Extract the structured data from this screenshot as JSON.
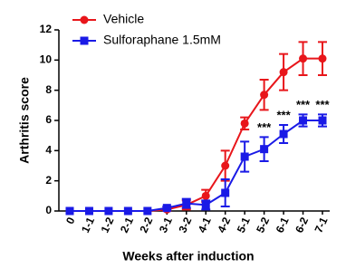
{
  "chart_data": {
    "type": "line",
    "y_label": "Arthritis score",
    "x_label": "Weeks after induction",
    "categories": [
      "0",
      "1-1",
      "1-2",
      "2-1",
      "2-2",
      "3-1",
      "3-2",
      "4-1",
      "4-2",
      "5-1",
      "5-2",
      "6-1",
      "6-2",
      "7-1"
    ],
    "series": [
      {
        "name": "Vehicle",
        "color": "#e8161b",
        "marker": "circle",
        "values": [
          0,
          0,
          0,
          0,
          0,
          0.1,
          0.4,
          1.0,
          3.0,
          5.8,
          7.7,
          9.2,
          10.1,
          10.1
        ],
        "errors": [
          0,
          0,
          0,
          0,
          0,
          0.1,
          0.3,
          0.4,
          1.0,
          0.4,
          1.0,
          1.2,
          1.1,
          1.1
        ]
      },
      {
        "name": "Sulforaphane 1.5mM",
        "color": "#1a1ae6",
        "marker": "square",
        "values": [
          0,
          0,
          0,
          0,
          0,
          0.2,
          0.5,
          0.4,
          1.2,
          3.6,
          4.1,
          5.1,
          6.0,
          6.0
        ],
        "errors": [
          0,
          0,
          0,
          0,
          0,
          0.1,
          0.3,
          0.3,
          0.9,
          1.0,
          0.8,
          0.6,
          0.4,
          0.4
        ]
      }
    ],
    "significance": [
      null,
      null,
      null,
      null,
      null,
      null,
      null,
      null,
      null,
      null,
      "***",
      "***",
      "***",
      "***"
    ],
    "ylim": [
      0,
      12
    ],
    "yticks": [
      0,
      2,
      4,
      6,
      8,
      10,
      12
    ],
    "grid": false,
    "legend": "top-left"
  }
}
